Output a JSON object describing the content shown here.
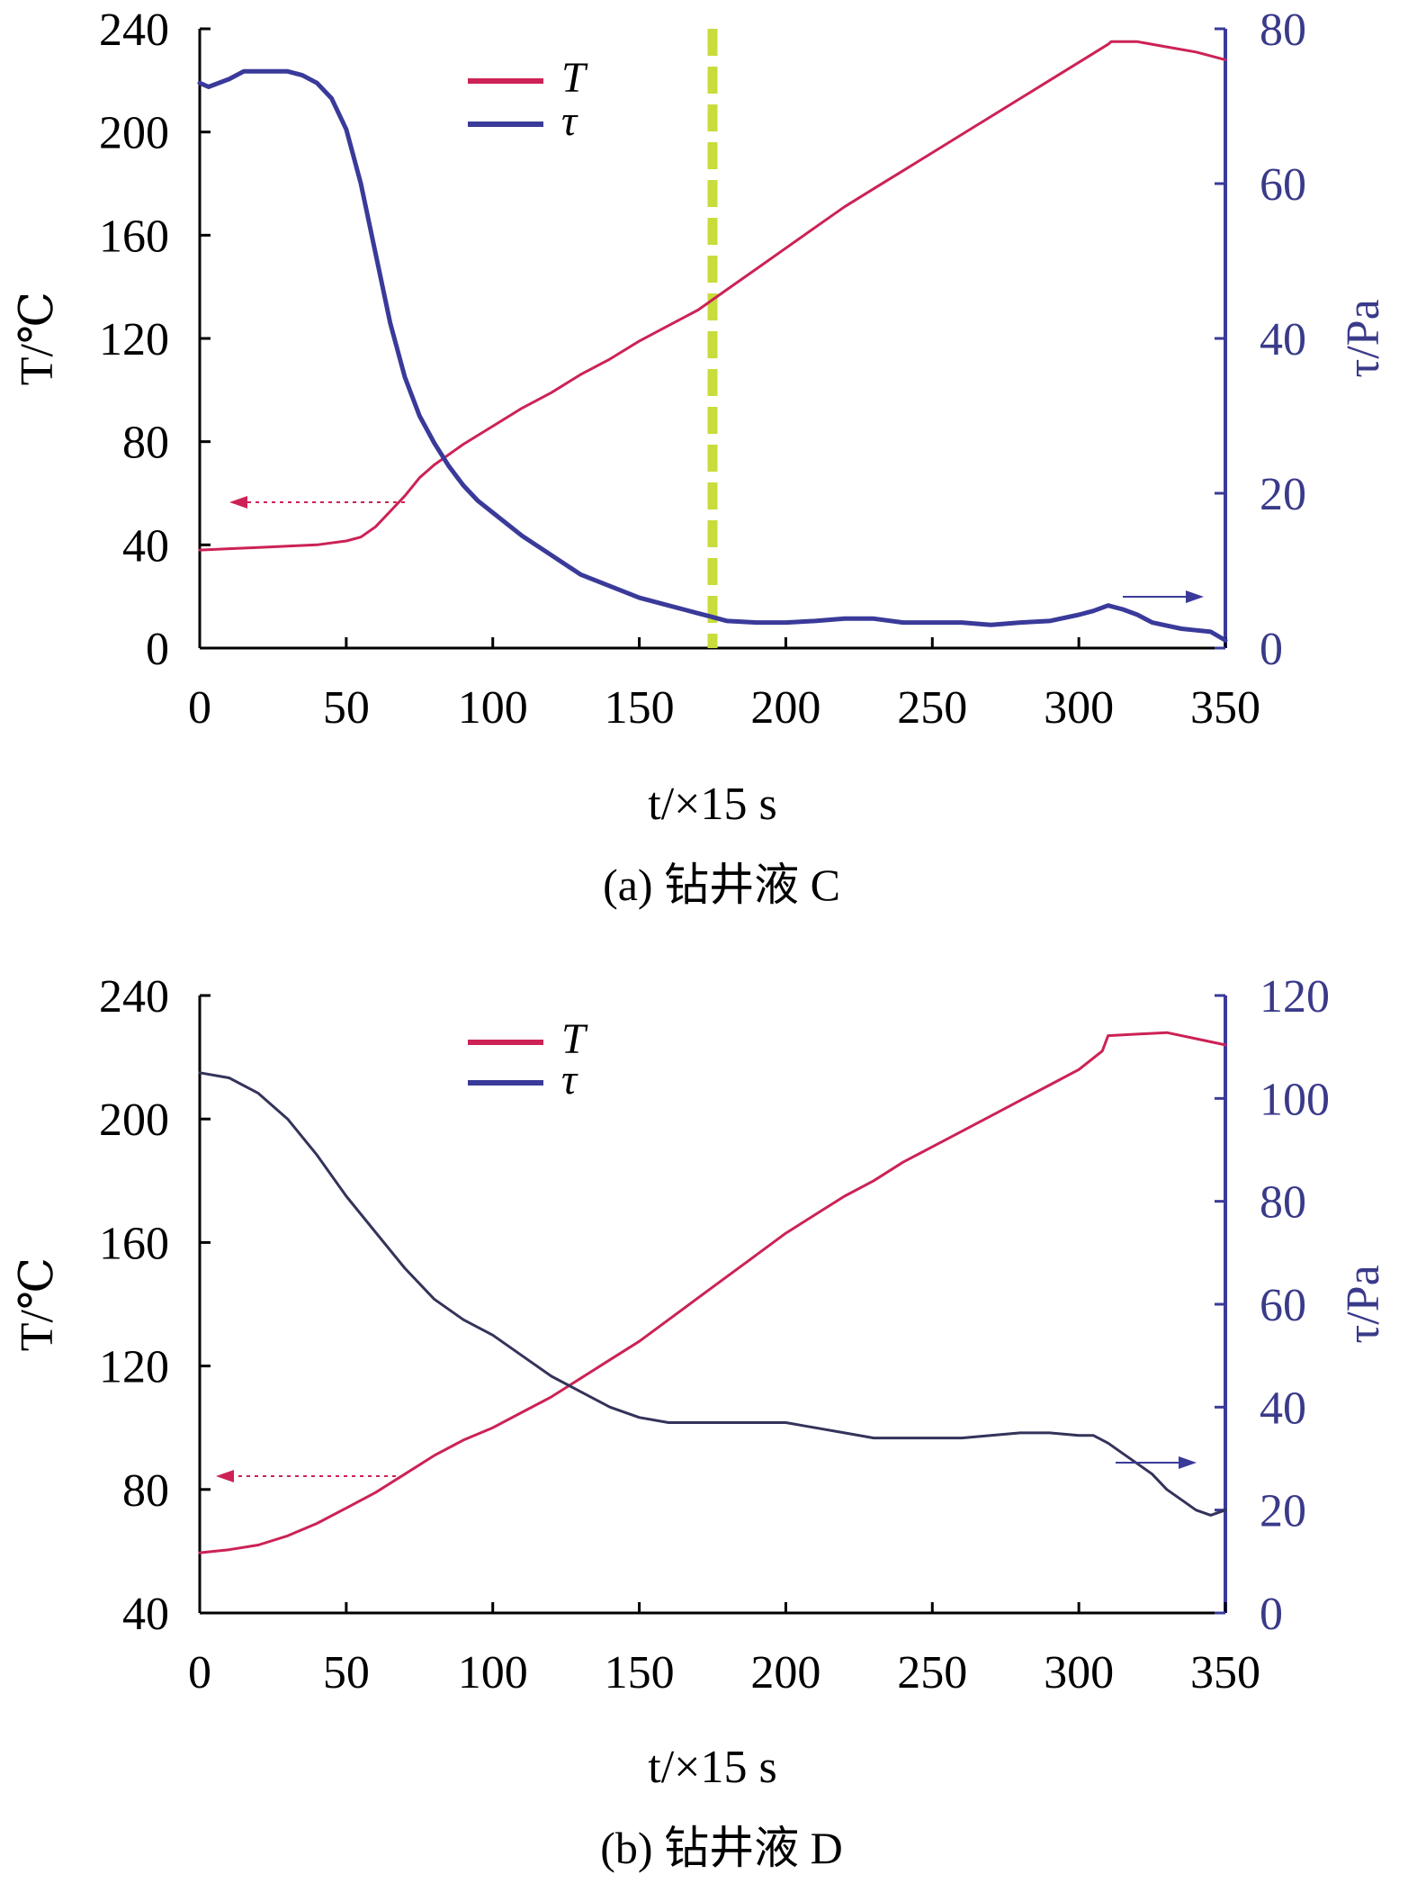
{
  "colors": {
    "T": "#cc2255",
    "tau": "#3a3a9a",
    "tau_dark": "#33335a",
    "right_axis": "#3a3a9a",
    "left_axis": "#000000",
    "marker": "#c8dc3c",
    "text": "#000000",
    "right_text": "#3a3a8a"
  },
  "chart_data": [
    {
      "type": "line",
      "caption": "(a) 钻井液 C",
      "xlabel": "t/×15 s",
      "ylabel_left": "T/℃",
      "ylabel_right": "τ/Pa",
      "xlim": [
        0,
        350
      ],
      "ylim_left": [
        0,
        240
      ],
      "ylim_right": [
        0,
        80
      ],
      "xticks": [
        "0",
        "50",
        "100",
        "150",
        "200",
        "250",
        "300",
        "350"
      ],
      "yticks_left": [
        "0",
        "40",
        "80",
        "120",
        "160",
        "200",
        "240"
      ],
      "yticks_right": [
        "0",
        "20",
        "40",
        "60",
        "80"
      ],
      "legend": [
        "T",
        "τ"
      ],
      "legend_position": "top-center",
      "vertical_marker_x": 175,
      "series": [
        {
          "name": "T",
          "axis": "left",
          "x": [
            0,
            10,
            20,
            30,
            40,
            50,
            55,
            60,
            65,
            70,
            75,
            80,
            90,
            100,
            110,
            120,
            130,
            140,
            150,
            160,
            170,
            175,
            180,
            190,
            200,
            210,
            220,
            230,
            240,
            250,
            260,
            270,
            280,
            290,
            300,
            310,
            311,
            320,
            330,
            340,
            350
          ],
          "y": [
            38,
            38.5,
            39,
            39.5,
            40,
            41.5,
            43,
            47,
            53,
            59,
            66,
            71,
            79,
            86,
            93,
            99,
            106,
            112,
            119,
            125,
            131,
            135,
            139,
            147,
            155,
            163,
            171,
            178,
            185,
            192,
            199,
            206,
            213,
            220,
            227,
            234,
            235,
            235,
            233,
            231,
            228
          ]
        },
        {
          "name": "τ",
          "axis": "right",
          "x": [
            0,
            3,
            10,
            15,
            20,
            30,
            35,
            40,
            45,
            50,
            55,
            60,
            65,
            70,
            75,
            80,
            85,
            90,
            95,
            100,
            110,
            120,
            130,
            140,
            150,
            160,
            170,
            175,
            180,
            190,
            200,
            210,
            220,
            230,
            240,
            250,
            260,
            270,
            280,
            290,
            300,
            305,
            310,
            315,
            320,
            325,
            330,
            335,
            340,
            345,
            350
          ],
          "y": [
            73,
            72.5,
            73.5,
            74.5,
            74.5,
            74.5,
            74,
            73,
            71,
            67,
            60,
            51,
            42,
            35,
            30,
            26.5,
            23.5,
            21,
            19,
            17.5,
            14.5,
            12,
            9.5,
            8,
            6.5,
            5.5,
            4.5,
            4,
            3.5,
            3.3,
            3.3,
            3.5,
            3.8,
            3.8,
            3.3,
            3.3,
            3.3,
            3.0,
            3.3,
            3.5,
            4.3,
            4.8,
            5.5,
            5.0,
            4.3,
            3.3,
            2.9,
            2.5,
            2.3,
            2.1,
            1.0
          ]
        }
      ]
    },
    {
      "type": "line",
      "caption": "(b) 钻井液 D",
      "xlabel": "t/×15 s",
      "ylabel_left": "T/℃",
      "ylabel_right": "τ/Pa",
      "xlim": [
        0,
        350
      ],
      "ylim_left": [
        40,
        240
      ],
      "ylim_right": [
        0,
        120
      ],
      "xticks": [
        "0",
        "50",
        "100",
        "150",
        "200",
        "250",
        "300",
        "350"
      ],
      "yticks_left": [
        "40",
        "80",
        "120",
        "160",
        "200",
        "240"
      ],
      "yticks_right": [
        "0",
        "20",
        "40",
        "60",
        "80",
        "100",
        "120"
      ],
      "legend": [
        "T",
        "τ"
      ],
      "legend_position": "top-center",
      "series": [
        {
          "name": "T",
          "axis": "left",
          "x": [
            0,
            10,
            20,
            30,
            40,
            50,
            60,
            70,
            80,
            90,
            100,
            110,
            120,
            130,
            140,
            150,
            160,
            170,
            180,
            190,
            200,
            210,
            220,
            230,
            240,
            250,
            260,
            270,
            280,
            290,
            300,
            308,
            310,
            320,
            330,
            340,
            350
          ],
          "y": [
            59.5,
            60.5,
            62,
            65,
            69,
            74,
            79,
            85,
            91,
            96,
            100,
            105,
            110,
            116,
            122,
            128,
            135,
            142,
            149,
            156,
            163,
            169,
            175,
            180,
            186,
            191,
            196,
            201,
            206,
            211,
            216,
            222,
            227,
            227.5,
            228,
            226,
            224
          ]
        },
        {
          "name": "τ",
          "axis": "right",
          "x": [
            0,
            10,
            20,
            30,
            40,
            50,
            60,
            70,
            80,
            90,
            100,
            110,
            120,
            130,
            140,
            150,
            160,
            170,
            180,
            190,
            200,
            210,
            220,
            230,
            240,
            250,
            260,
            270,
            280,
            290,
            300,
            305,
            310,
            315,
            320,
            325,
            330,
            335,
            340,
            345,
            350
          ],
          "y": [
            105,
            104,
            101,
            96,
            89,
            81,
            74,
            67,
            61,
            57,
            54,
            50,
            46,
            43,
            40,
            38,
            37,
            37,
            37,
            37,
            37,
            36,
            35,
            34,
            34,
            34,
            34,
            34.5,
            35,
            35,
            34.5,
            34.5,
            33,
            31,
            29,
            27,
            24,
            22,
            20,
            19,
            20
          ]
        }
      ]
    }
  ]
}
